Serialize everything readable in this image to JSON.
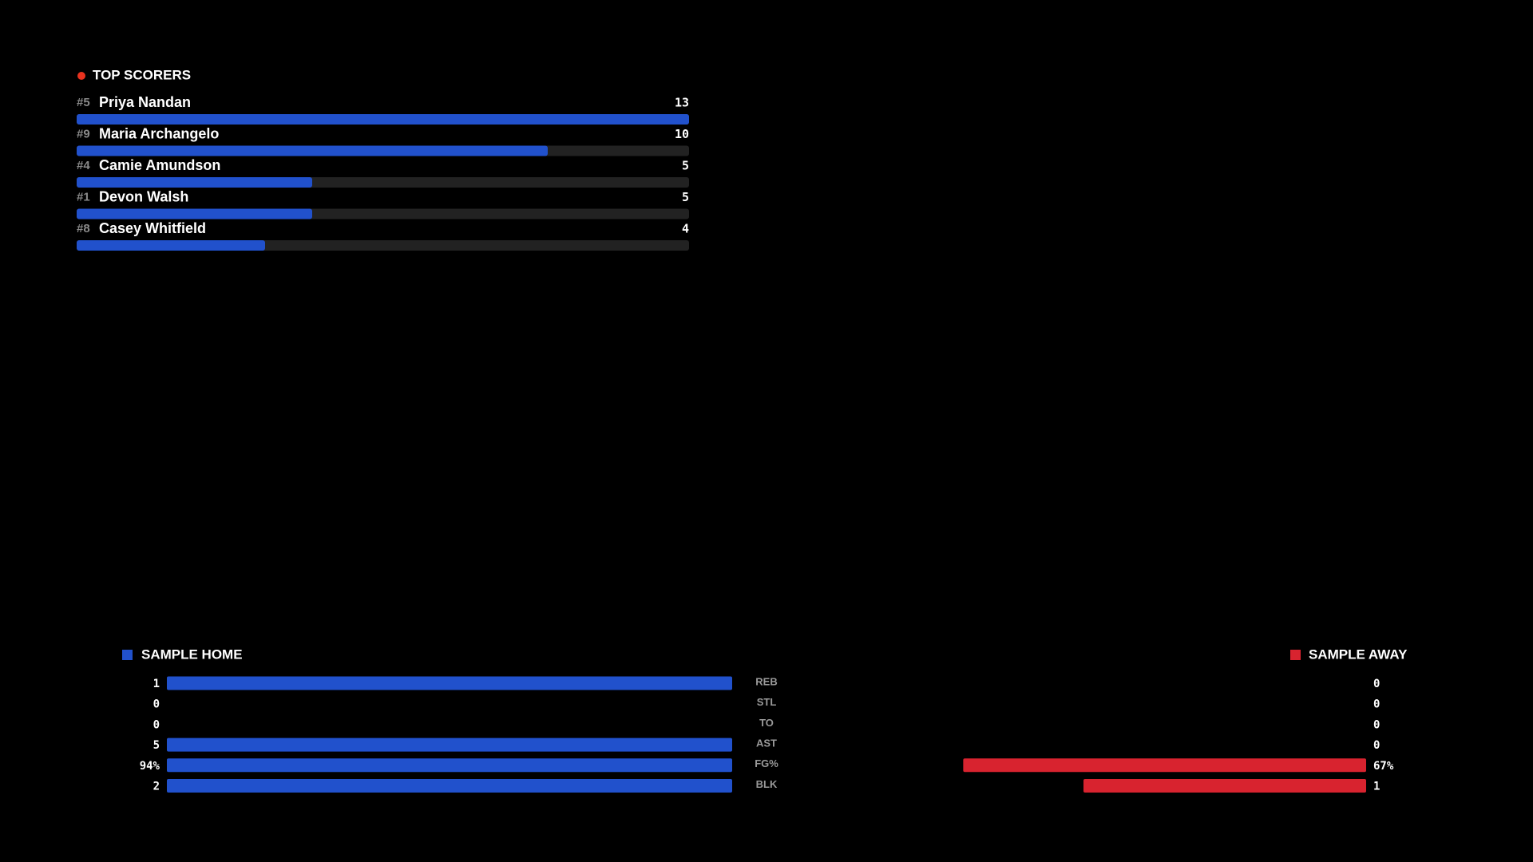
{
  "top_scorers": {
    "title": "TOP SCORERS",
    "bar_color": "#2151cc",
    "players": [
      {
        "number": "#5",
        "name": "Priya Nandan",
        "points": 13
      },
      {
        "number": "#9",
        "name": "Maria Archangelo",
        "points": 10
      },
      {
        "number": "#4",
        "name": "Camie Amundson",
        "points": 5
      },
      {
        "number": "#1",
        "name": "Devon Walsh",
        "points": 5
      },
      {
        "number": "#8",
        "name": "Casey Whitfield",
        "points": 4
      }
    ]
  },
  "team_stats": {
    "home": {
      "name": "SAMPLE HOME",
      "color": "#2151cc"
    },
    "away": {
      "name": "SAMPLE AWAY",
      "color": "#d8232f"
    },
    "rows": [
      {
        "stat": "REB",
        "home": 1,
        "away": 0
      },
      {
        "stat": "STL",
        "home": 0,
        "away": 0
      },
      {
        "stat": "TO",
        "home": 0,
        "away": 0
      },
      {
        "stat": "AST",
        "home": 5,
        "away": 0
      },
      {
        "stat": "FG%",
        "home": 94,
        "away": 67,
        "home_label": "94%",
        "away_label": "67%"
      },
      {
        "stat": "BLK",
        "home": 2,
        "away": 1
      }
    ]
  }
}
